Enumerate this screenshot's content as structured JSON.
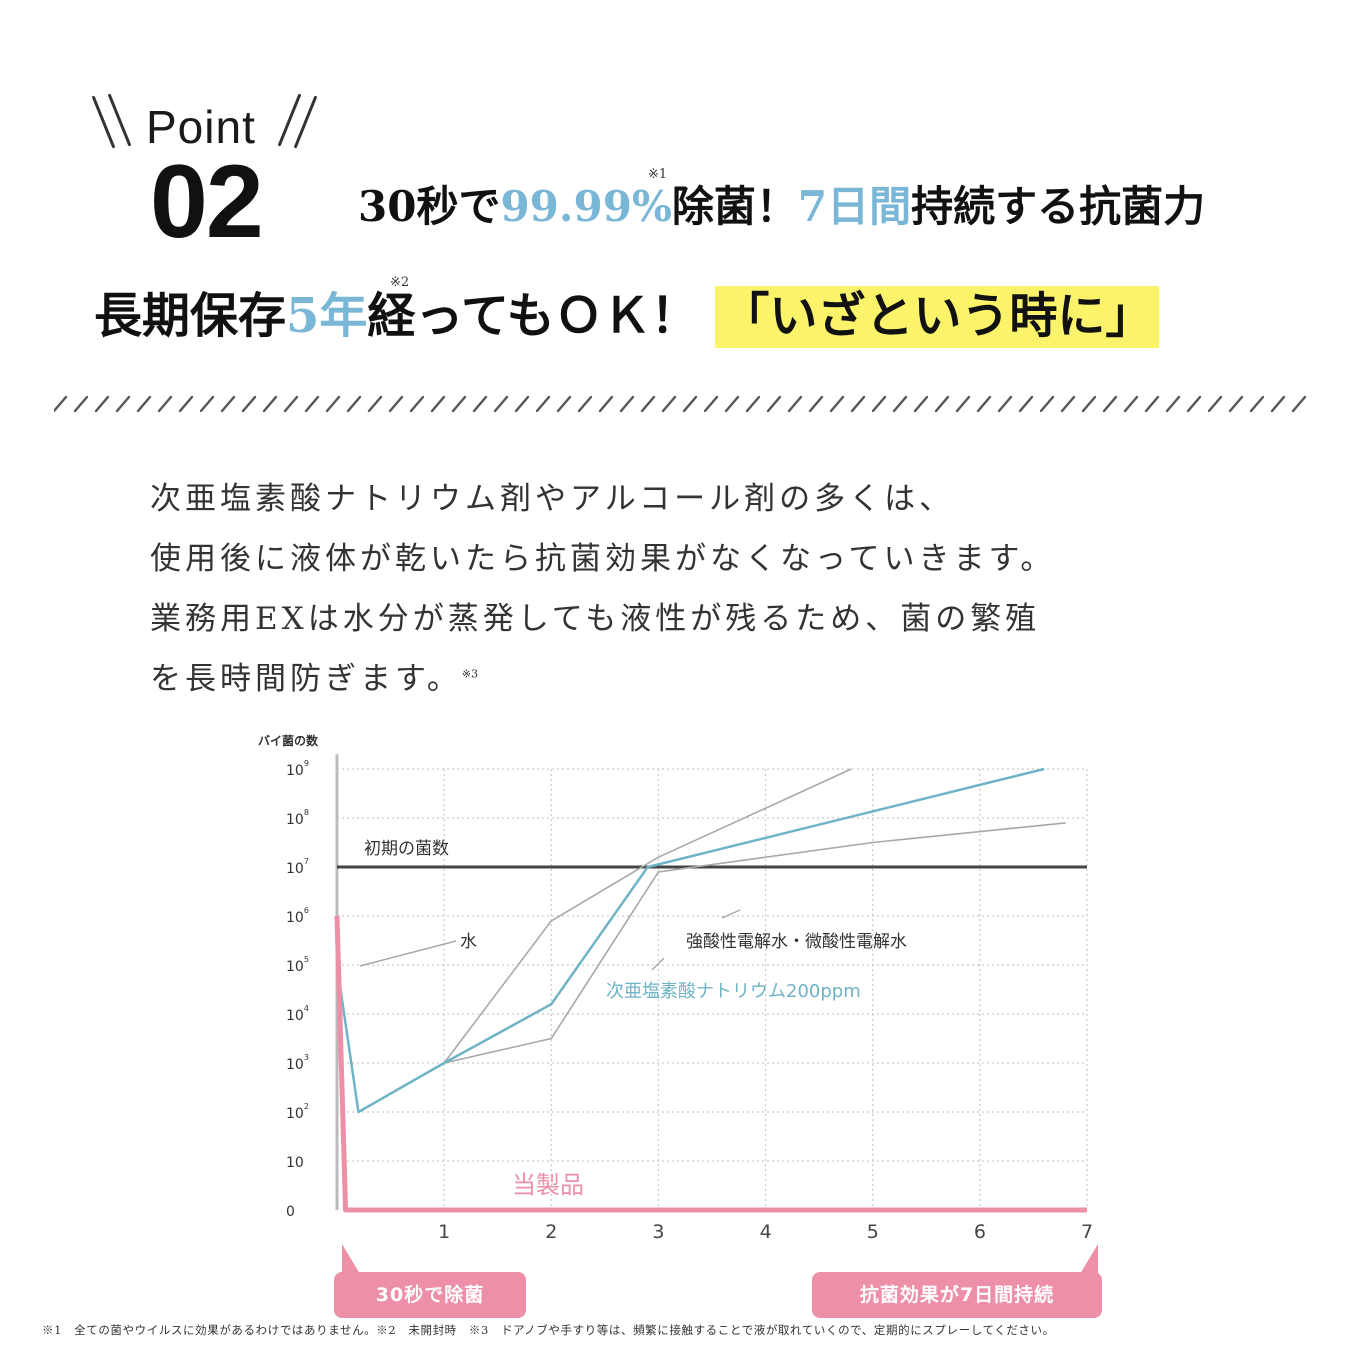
{
  "badge": {
    "word": "Point",
    "number": "02"
  },
  "headline1": {
    "a": "30秒で",
    "b": "99.99%",
    "c": "除菌！",
    "d": "7日間",
    "e": "持続する抗菌力",
    "note": "※1"
  },
  "headline2": {
    "a": "長期保存",
    "b": "5年",
    "c": "経ってもＯＫ！",
    "highlight": "「いざという時に」",
    "note": "※2"
  },
  "body": {
    "line1": "次亜塩素酸ナトリウム剤やアルコール剤の多くは、",
    "line2": "使用後に液体が乾いたら抗菌効果がなくなっていきます。",
    "line3": "業務用EXは水分が蒸発しても液性が残るため、菌の繁殖",
    "line4": "を長時間防ぎます。",
    "note": "※3"
  },
  "colors": {
    "blue_accent": "#7ab6d6",
    "highlight": "#fbf46b",
    "pink": "#ee8fa8",
    "grey_line": "#a8a8a8",
    "teal_line": "#6fb3c6",
    "dark_line": "#444444"
  },
  "chart_data": {
    "type": "line",
    "title": "",
    "ylabel": "バイ菌の数",
    "xlabel": "",
    "y_scale": "log",
    "y_ticks": [
      "0",
      "10",
      "10^2",
      "10^3",
      "10^4",
      "10^5",
      "10^6",
      "10^7",
      "10^8",
      "10^9"
    ],
    "x_ticks": [
      "1",
      "2",
      "3",
      "4",
      "5",
      "6",
      "7"
    ],
    "xlim": [
      0,
      7
    ],
    "grid": true,
    "reference_line": {
      "label": "初期の菌数",
      "y_exp": 7
    },
    "series": [
      {
        "name": "水",
        "color": "grey",
        "points": [
          [
            0,
            5
          ],
          [
            0.2,
            2
          ],
          [
            1,
            3
          ],
          [
            2,
            5.9
          ],
          [
            3,
            7.2
          ],
          [
            4.8,
            9
          ]
        ]
      },
      {
        "name": "強酸性電解水・微酸性電解水",
        "color": "grey",
        "points": [
          [
            0,
            5
          ],
          [
            0.2,
            2
          ],
          [
            1,
            3
          ],
          [
            2,
            3.5
          ],
          [
            3,
            6.9
          ],
          [
            5,
            7.5
          ],
          [
            6.8,
            7.9
          ]
        ]
      },
      {
        "name": "次亜塩素酸ナトリウム200ppm",
        "color": "teal",
        "points": [
          [
            0,
            5
          ],
          [
            0.2,
            2
          ],
          [
            1,
            3
          ],
          [
            2,
            4.2
          ],
          [
            2.9,
            7
          ],
          [
            6.6,
            9
          ]
        ]
      },
      {
        "name": "当製品",
        "color": "pink",
        "points": [
          [
            0,
            6
          ],
          [
            0.08,
            0
          ],
          [
            7,
            0
          ]
        ]
      }
    ],
    "callouts": {
      "left": "30秒で除菌",
      "right": "抗菌効果が7日間持続"
    }
  },
  "footnote": "※1　全ての菌やウイルスに効果があるわけではありません。※2　未開封時　※3　ドアノブや手すり等は、頻繁に接触することで液が取れていくので、定期的にスプレーしてください。"
}
